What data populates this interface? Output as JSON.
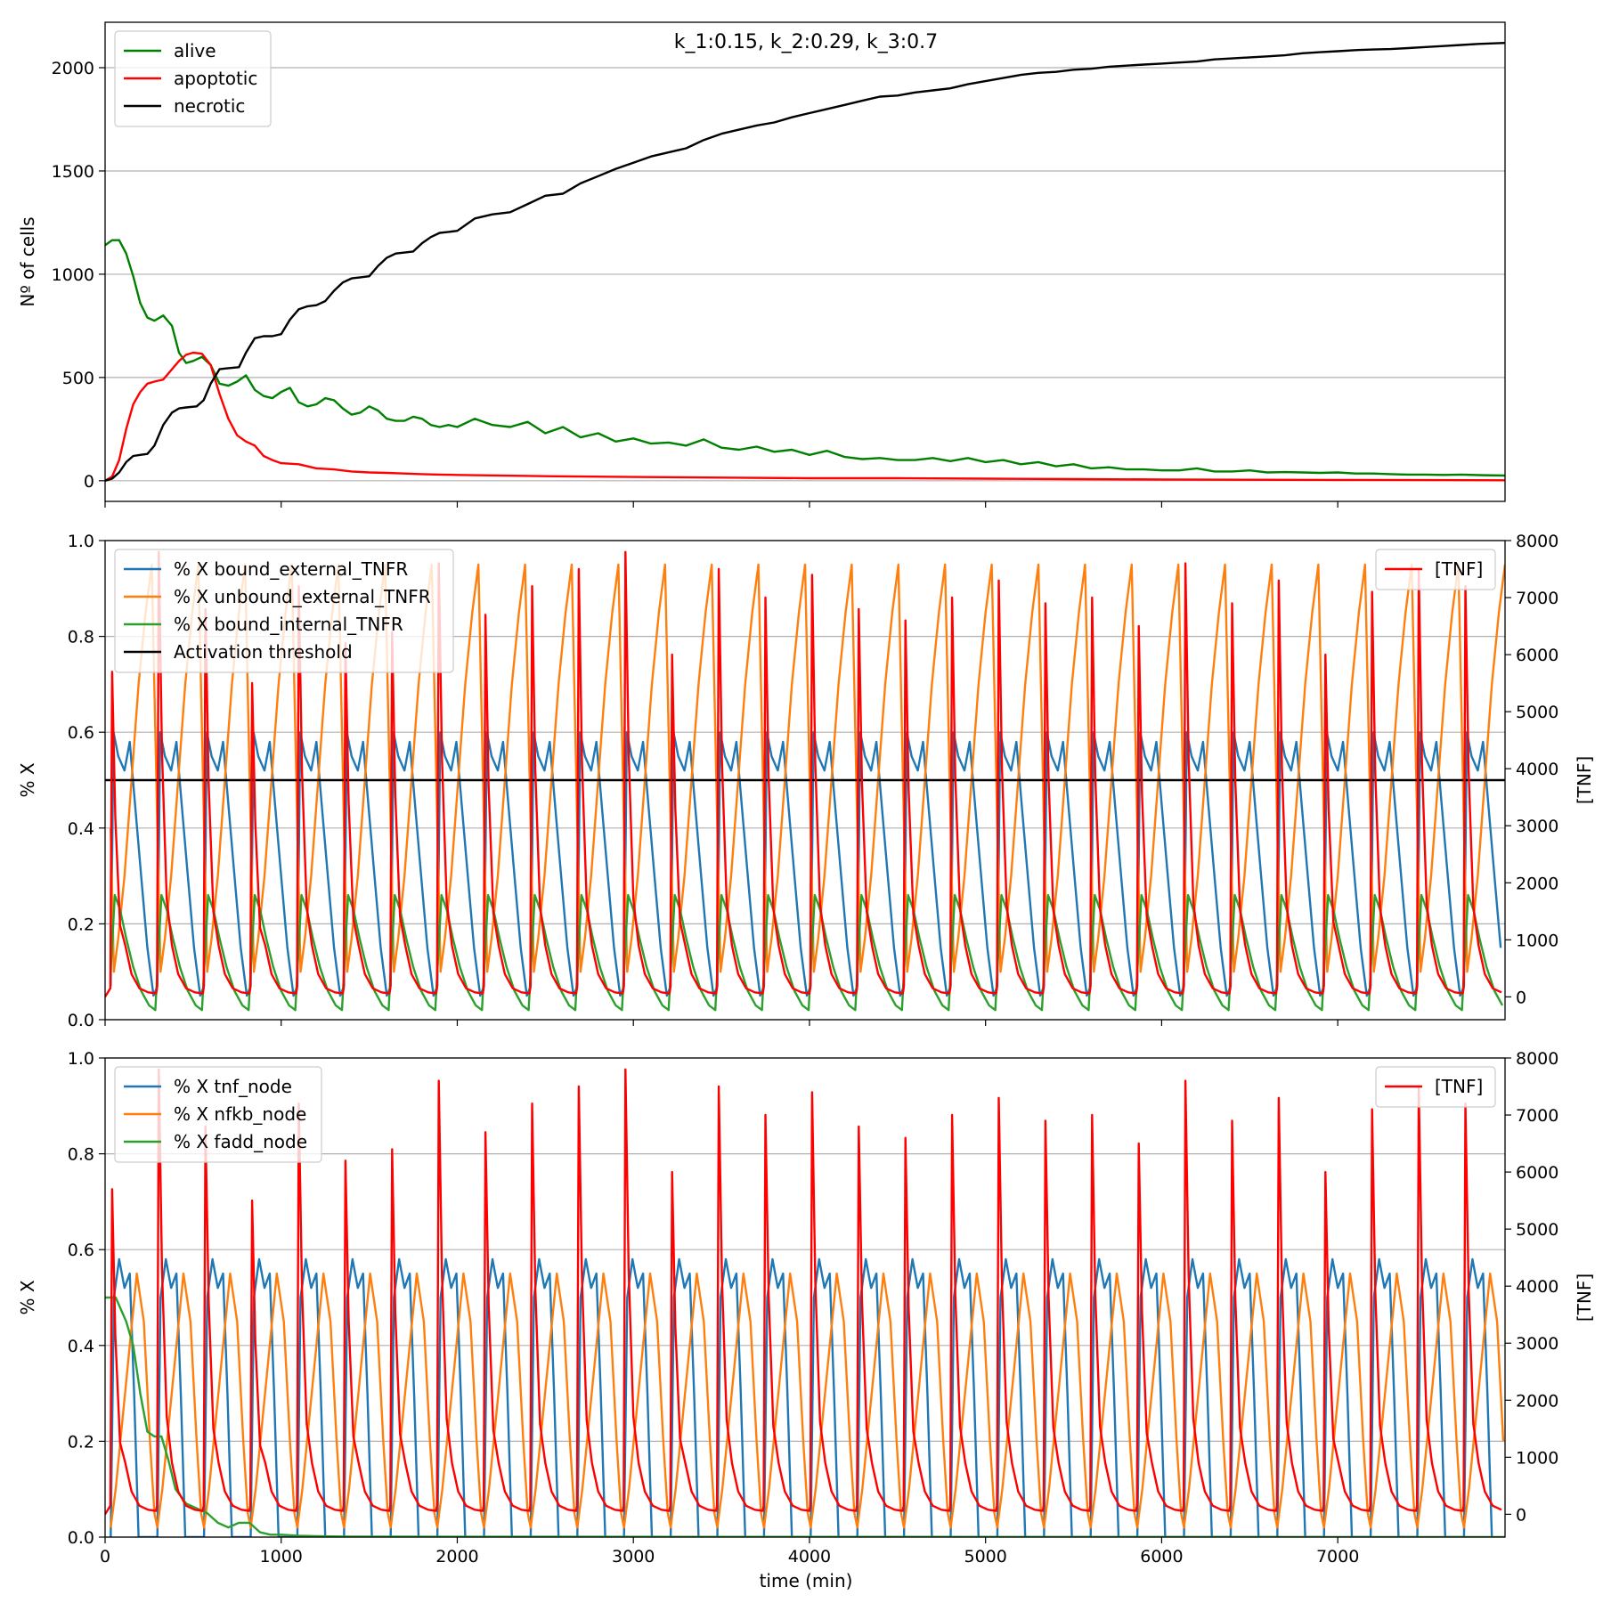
{
  "chart_data": [
    {
      "type": "line",
      "title": "k_1:0.15, k_2:0.29, k_3:0.7",
      "xlabel": "",
      "ylabel": "Nº of cells",
      "xlim": [
        0,
        7950
      ],
      "ylim": [
        -100,
        2220
      ],
      "xticks": [
        0,
        1000,
        2000,
        3000,
        4000,
        5000,
        6000,
        7000
      ],
      "yticks": [
        0,
        500,
        1000,
        1500,
        2000
      ],
      "grid": "y",
      "legend": "top-left",
      "series": [
        {
          "name": "alive",
          "color": "#008000",
          "x": [
            0,
            40,
            80,
            120,
            160,
            200,
            240,
            280,
            330,
            380,
            420,
            460,
            500,
            550,
            600,
            650,
            700,
            750,
            800,
            850,
            900,
            950,
            1000,
            1050,
            1100,
            1150,
            1200,
            1250,
            1300,
            1350,
            1400,
            1450,
            1500,
            1550,
            1600,
            1650,
            1700,
            1750,
            1800,
            1850,
            1900,
            1950,
            2000,
            2100,
            2200,
            2300,
            2400,
            2500,
            2600,
            2700,
            2800,
            2900,
            3000,
            3100,
            3200,
            3300,
            3400,
            3500,
            3600,
            3700,
            3800,
            3900,
            4000,
            4100,
            4200,
            4300,
            4400,
            4500,
            4600,
            4700,
            4800,
            4900,
            5000,
            5100,
            5200,
            5300,
            5400,
            5500,
            5600,
            5700,
            5800,
            5900,
            6000,
            6100,
            6200,
            6300,
            6400,
            6500,
            6600,
            6700,
            6800,
            6900,
            7000,
            7100,
            7200,
            7300,
            7400,
            7500,
            7600,
            7700,
            7800,
            7950
          ],
          "values": [
            1140,
            1165,
            1165,
            1100,
            990,
            860,
            790,
            775,
            800,
            750,
            620,
            570,
            580,
            600,
            560,
            470,
            460,
            480,
            510,
            440,
            410,
            400,
            430,
            450,
            380,
            360,
            370,
            400,
            390,
            350,
            320,
            330,
            360,
            340,
            300,
            290,
            290,
            310,
            300,
            270,
            260,
            270,
            260,
            300,
            270,
            260,
            285,
            230,
            260,
            210,
            230,
            190,
            205,
            180,
            185,
            170,
            200,
            160,
            150,
            165,
            140,
            150,
            125,
            145,
            115,
            105,
            110,
            100,
            100,
            110,
            95,
            110,
            90,
            100,
            80,
            90,
            70,
            80,
            60,
            65,
            55,
            55,
            50,
            50,
            60,
            45,
            45,
            50,
            40,
            42,
            40,
            38,
            40,
            35,
            35,
            32,
            30,
            30,
            28,
            30,
            27,
            25
          ]
        },
        {
          "name": "apoptotic",
          "color": "#ff0000",
          "x": [
            0,
            40,
            80,
            120,
            160,
            200,
            240,
            280,
            330,
            380,
            420,
            460,
            500,
            550,
            600,
            650,
            700,
            750,
            800,
            850,
            900,
            950,
            1000,
            1100,
            1200,
            1300,
            1400,
            1500,
            1600,
            1700,
            1800,
            1900,
            2000,
            2500,
            3000,
            3500,
            4000,
            4500,
            5000,
            5500,
            6000,
            6500,
            7000,
            7500,
            7950
          ],
          "values": [
            0,
            20,
            100,
            250,
            370,
            430,
            470,
            480,
            490,
            540,
            580,
            610,
            620,
            615,
            560,
            420,
            300,
            220,
            190,
            170,
            120,
            100,
            85,
            80,
            60,
            55,
            45,
            40,
            38,
            35,
            32,
            30,
            28,
            22,
            18,
            15,
            12,
            12,
            10,
            8,
            6,
            5,
            4,
            3,
            2
          ]
        },
        {
          "name": "necrotic",
          "color": "#000000",
          "x": [
            0,
            40,
            80,
            120,
            160,
            200,
            240,
            280,
            330,
            380,
            420,
            460,
            520,
            560,
            600,
            650,
            700,
            760,
            800,
            850,
            900,
            950,
            1000,
            1050,
            1100,
            1150,
            1200,
            1250,
            1300,
            1350,
            1400,
            1450,
            1500,
            1550,
            1600,
            1650,
            1700,
            1750,
            1800,
            1850,
            1900,
            1950,
            2000,
            2100,
            2200,
            2300,
            2400,
            2500,
            2600,
            2700,
            2800,
            2900,
            3000,
            3100,
            3200,
            3300,
            3400,
            3500,
            3600,
            3700,
            3800,
            3900,
            4000,
            4100,
            4200,
            4300,
            4400,
            4500,
            4600,
            4700,
            4800,
            4900,
            5000,
            5100,
            5200,
            5300,
            5400,
            5500,
            5600,
            5700,
            5800,
            5900,
            6000,
            6100,
            6200,
            6300,
            6400,
            6500,
            6600,
            6700,
            6800,
            6900,
            7000,
            7100,
            7200,
            7300,
            7400,
            7500,
            7600,
            7700,
            7800,
            7950
          ],
          "values": [
            0,
            10,
            40,
            90,
            120,
            125,
            130,
            170,
            270,
            330,
            350,
            355,
            360,
            390,
            470,
            540,
            545,
            550,
            620,
            690,
            700,
            700,
            710,
            780,
            830,
            845,
            850,
            870,
            920,
            960,
            980,
            985,
            990,
            1040,
            1080,
            1100,
            1105,
            1110,
            1150,
            1180,
            1200,
            1205,
            1210,
            1270,
            1290,
            1300,
            1340,
            1380,
            1390,
            1440,
            1475,
            1510,
            1540,
            1570,
            1590,
            1610,
            1650,
            1680,
            1700,
            1720,
            1735,
            1760,
            1780,
            1800,
            1820,
            1840,
            1860,
            1865,
            1880,
            1890,
            1900,
            1920,
            1935,
            1950,
            1965,
            1975,
            1980,
            1990,
            1995,
            2005,
            2010,
            2015,
            2020,
            2025,
            2030,
            2040,
            2045,
            2050,
            2055,
            2060,
            2070,
            2075,
            2080,
            2085,
            2088,
            2090,
            2095,
            2100,
            2105,
            2110,
            2115,
            2120
          ]
        }
      ]
    },
    {
      "type": "line",
      "title": "",
      "xlabel": "",
      "ylabel": "% X",
      "y2label": "[TNF]",
      "xlim": [
        0,
        7950
      ],
      "ylim": [
        0,
        1
      ],
      "y2lim": [
        -400,
        8000
      ],
      "xticks": [
        0,
        1000,
        2000,
        3000,
        4000,
        5000,
        6000,
        7000
      ],
      "yticks": [
        0.0,
        0.2,
        0.4,
        0.6,
        0.8,
        1.0
      ],
      "y2ticks": [
        0,
        1000,
        2000,
        3000,
        4000,
        5000,
        6000,
        7000,
        8000
      ],
      "grid": "y",
      "legend": "top-left",
      "legend2": "top-right",
      "period": 265,
      "start": 30,
      "cycles": 30,
      "series": [
        {
          "name": "% X bound_external_TNFR",
          "color": "#1f77b4",
          "axis": "left",
          "shape": "blue",
          "peak": 0.6,
          "trough": 0.05
        },
        {
          "name": "% X unbound_external_TNFR",
          "color": "#ff7f0e",
          "axis": "left",
          "shape": "orange",
          "peak": 0.95,
          "trough": 0.1
        },
        {
          "name": "% X bound_internal_TNFR",
          "color": "#2ca02c",
          "axis": "left",
          "shape": "green",
          "peak": 0.26,
          "trough": 0.02
        },
        {
          "name": "Activation threshold",
          "color": "#000000",
          "axis": "left",
          "shape": "constant",
          "value": 0.5
        },
        {
          "name": "[TNF]",
          "color": "#ff0000",
          "axis": "right",
          "shape": "spike",
          "peaks": [
            5700,
            7800,
            6800,
            5500,
            7200,
            6200,
            6400,
            7600,
            6700,
            7200,
            7500,
            7800,
            6000,
            7500,
            7000,
            7400,
            6800,
            6600,
            7000,
            7300,
            6900,
            7000,
            6500,
            7600,
            6900,
            7300,
            6000,
            7100,
            7500,
            7200
          ]
        }
      ]
    },
    {
      "type": "line",
      "title": "",
      "xlabel": "time (min)",
      "ylabel": "% X",
      "y2label": "[TNF]",
      "xlim": [
        0,
        7950
      ],
      "ylim": [
        0,
        1
      ],
      "y2lim": [
        -400,
        8000
      ],
      "xticks": [
        0,
        1000,
        2000,
        3000,
        4000,
        5000,
        6000,
        7000
      ],
      "yticks": [
        0.0,
        0.2,
        0.4,
        0.6,
        0.8,
        1.0
      ],
      "y2ticks": [
        0,
        1000,
        2000,
        3000,
        4000,
        5000,
        6000,
        7000,
        8000
      ],
      "grid": "y",
      "legend": "top-left",
      "legend2": "top-right",
      "period": 265,
      "start": 30,
      "cycles": 30,
      "series": [
        {
          "name": "% X tnf_node",
          "color": "#1f77b4",
          "axis": "left",
          "shape": "saw",
          "peak": 0.58
        },
        {
          "name": "% X nfkb_node",
          "color": "#ff7f0e",
          "axis": "left",
          "shape": "hump",
          "peak": 0.55
        },
        {
          "name": "% X fadd_node",
          "color": "#2ca02c",
          "axis": "left",
          "shape": "points",
          "x": [
            0,
            60,
            120,
            160,
            200,
            240,
            280,
            320,
            360,
            400,
            460,
            520,
            580,
            640,
            700,
            760,
            820,
            880,
            940,
            1000,
            1100,
            1200,
            1400,
            7950
          ],
          "values": [
            0.5,
            0.5,
            0.45,
            0.4,
            0.3,
            0.22,
            0.21,
            0.21,
            0.16,
            0.1,
            0.07,
            0.06,
            0.05,
            0.03,
            0.02,
            0.03,
            0.03,
            0.01,
            0.005,
            0.005,
            0.003,
            0.002,
            0.001,
            0.0
          ]
        },
        {
          "name": "[TNF]",
          "color": "#ff0000",
          "axis": "right",
          "shape": "spike",
          "peaks": [
            5700,
            7800,
            6800,
            5500,
            7200,
            6200,
            6400,
            7600,
            6700,
            7200,
            7500,
            7800,
            6000,
            7500,
            7000,
            7400,
            6800,
            6600,
            7000,
            7300,
            6900,
            7000,
            6500,
            7600,
            6900,
            7300,
            6000,
            7100,
            7500,
            7200
          ]
        }
      ]
    }
  ]
}
